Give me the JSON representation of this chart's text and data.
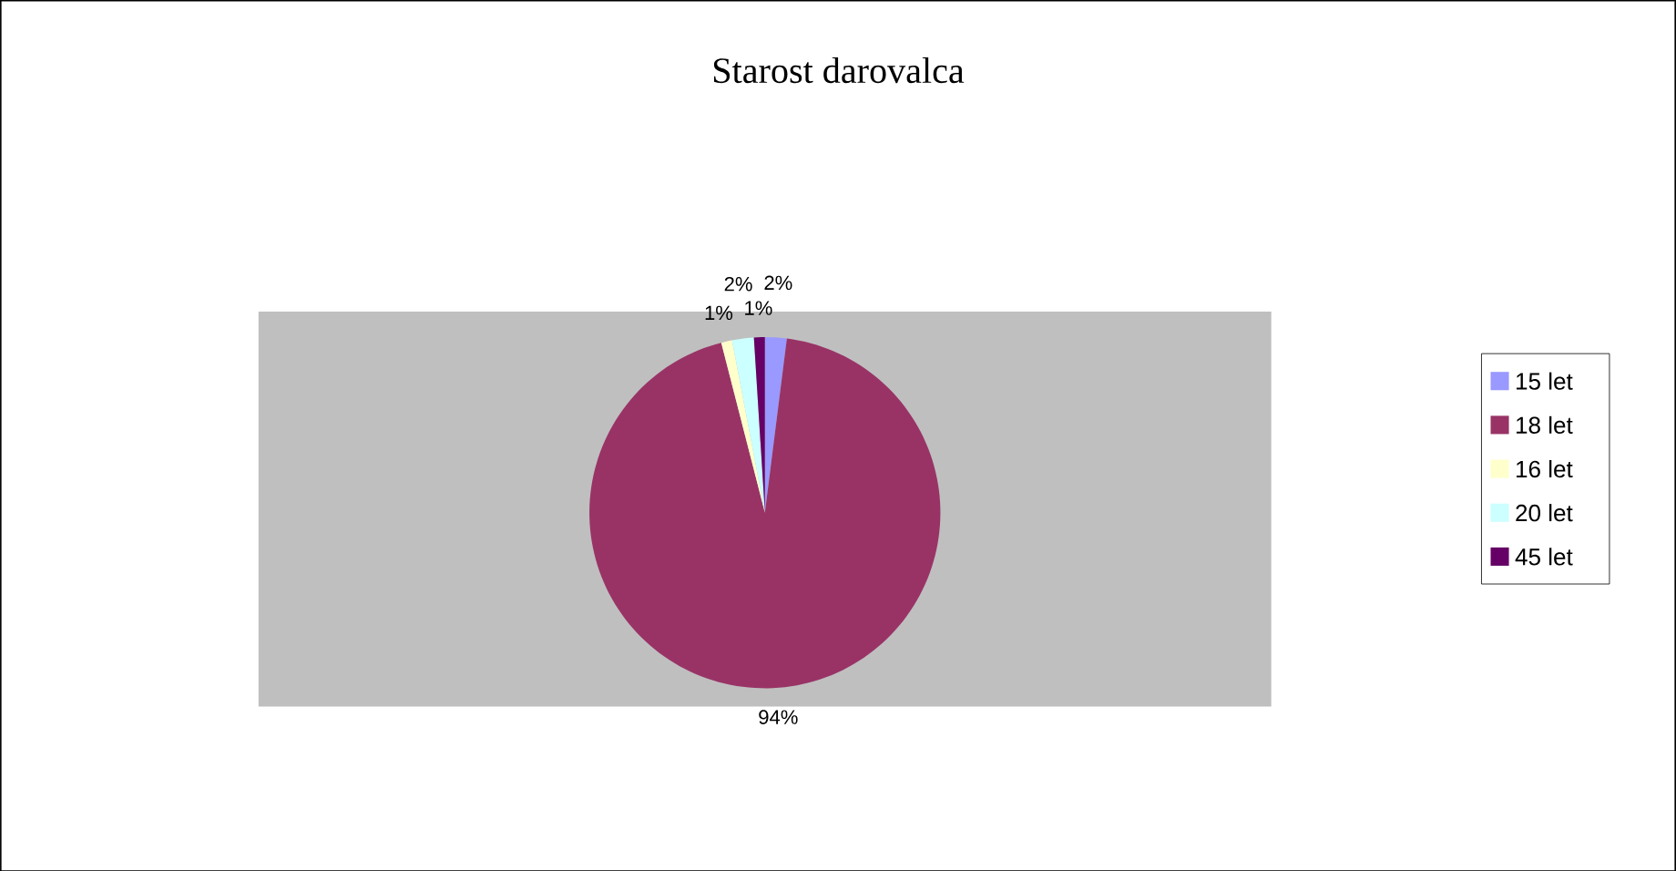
{
  "chart_data": {
    "type": "pie",
    "title": "Starost darovalca",
    "categories": [
      "15 let",
      "18 let",
      "16 let",
      "20 let",
      "45 let"
    ],
    "values": [
      2,
      94,
      1,
      2,
      1
    ],
    "value_labels": [
      "2%",
      "94%",
      "1%",
      "2%",
      "1%"
    ],
    "colors": [
      "#9999ff",
      "#993366",
      "#ffffcc",
      "#ccffff",
      "#660066"
    ],
    "legend": "right"
  }
}
